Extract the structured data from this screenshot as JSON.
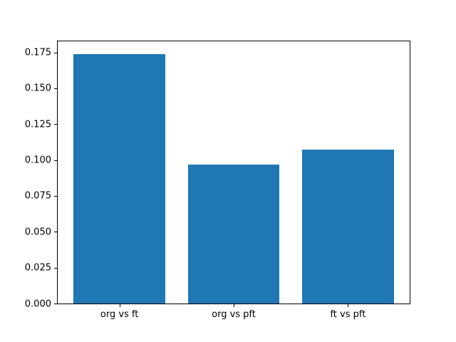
{
  "figure": {
    "background": "#ffffff",
    "title": ""
  },
  "chart_data": {
    "type": "bar",
    "categories": [
      "org vs ft",
      "org vs pft",
      "ft vs pft"
    ],
    "values": [
      0.174,
      0.097,
      0.107
    ],
    "title": "",
    "xlabel": "",
    "ylabel": "",
    "ylim": [
      0,
      0.1827
    ],
    "xlim": [
      -0.54,
      2.54
    ],
    "yticks": [
      0.0,
      0.025,
      0.05,
      0.075,
      0.1,
      0.125,
      0.15,
      0.175
    ],
    "ytick_labels": [
      "0.000",
      "0.025",
      "0.050",
      "0.075",
      "0.100",
      "0.125",
      "0.150",
      "0.175"
    ],
    "bar_width": 0.8,
    "bar_color": "#1f77b4",
    "spine_color": "#000000",
    "tick_color": "#000000",
    "grid": false,
    "legend": null
  }
}
